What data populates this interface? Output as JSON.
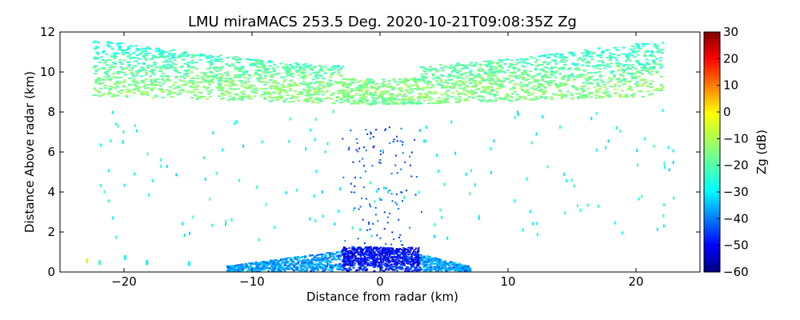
{
  "chart_data": {
    "type": "heatmap",
    "title": "LMU miraMACS 253.5 Deg. 2020-10-21T09:08:35Z  Zg",
    "xlabel": "Distance from radar (km)",
    "ylabel": "Distance Above radar  (km)",
    "xlim": [
      -25,
      25
    ],
    "ylim": [
      0,
      12
    ],
    "x_ticks": [
      -20,
      -10,
      0,
      10,
      20
    ],
    "x_tick_labels": [
      "−20",
      "−10",
      "0",
      "10",
      "20"
    ],
    "y_ticks": [
      0,
      2,
      4,
      6,
      8,
      10,
      12
    ],
    "y_tick_labels": [
      "0",
      "2",
      "4",
      "6",
      "8",
      "10",
      "12"
    ],
    "colorbar": {
      "label": "Zg (dB)",
      "range": [
        -60,
        30
      ],
      "ticks": [
        -60,
        -50,
        -40,
        -30,
        -20,
        -10,
        0,
        10,
        20,
        30
      ],
      "tick_labels": [
        "−60",
        "−50",
        "−40",
        "−30",
        "−20",
        "−10",
        "0",
        "10",
        "20",
        "30"
      ],
      "colormap": "jet"
    },
    "features": [
      {
        "name": "cirrus-layer",
        "x_range": [
          -22.5,
          22
        ],
        "z_range": [
          8.3,
          11.8
        ],
        "typical_zg_db": -18
      },
      {
        "name": "boundary-layer-echo",
        "x_range": [
          -12,
          7
        ],
        "z_range": [
          0,
          1.3
        ],
        "typical_zg_db": -35
      },
      {
        "name": "low-reflectivity-clutter",
        "x_range": [
          -3,
          3
        ],
        "z_range": [
          0.3,
          1.2
        ],
        "typical_zg_db": -50
      },
      {
        "name": "near-surface-sidelobe-echo",
        "x_range": [
          -23,
          -17
        ],
        "z_range": [
          0.2,
          0.7
        ],
        "typical_zg_db": -12
      }
    ]
  },
  "colors": {
    "jet_stops": [
      "#00007f",
      "#0000ff",
      "#007fff",
      "#00ffff",
      "#7fff7f",
      "#ffff00",
      "#ff7f00",
      "#ff0000",
      "#7f0000"
    ]
  }
}
